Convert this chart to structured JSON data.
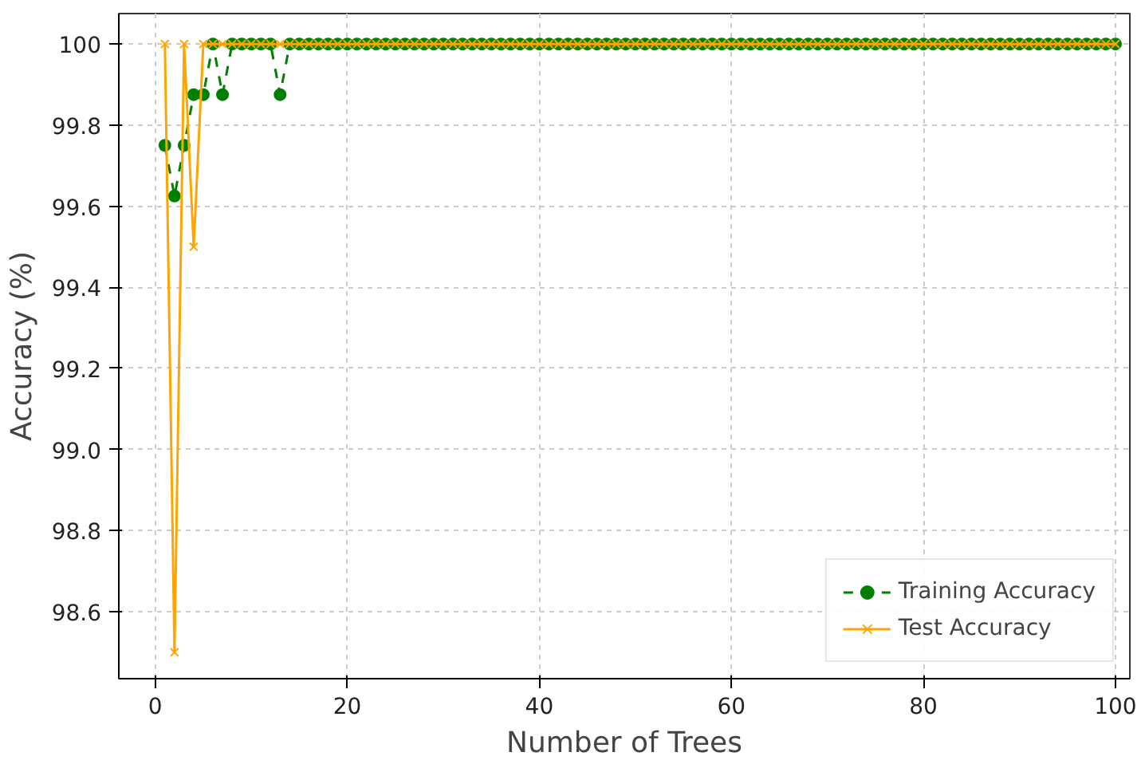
{
  "chart_data": {
    "type": "line",
    "xlabel": "Number of Trees",
    "ylabel": "Accuracy (%)",
    "x": [
      1,
      2,
      3,
      4,
      5,
      6,
      7,
      8,
      9,
      10,
      11,
      12,
      13,
      14,
      15,
      16,
      17,
      18,
      19,
      20,
      21,
      22,
      23,
      24,
      25,
      26,
      27,
      28,
      29,
      30,
      31,
      32,
      33,
      34,
      35,
      36,
      37,
      38,
      39,
      40,
      41,
      42,
      43,
      44,
      45,
      46,
      47,
      48,
      49,
      50,
      51,
      52,
      53,
      54,
      55,
      56,
      57,
      58,
      59,
      60,
      61,
      62,
      63,
      64,
      65,
      66,
      67,
      68,
      69,
      70,
      71,
      72,
      73,
      74,
      75,
      76,
      77,
      78,
      79,
      80,
      81,
      82,
      83,
      84,
      85,
      86,
      87,
      88,
      89,
      90,
      91,
      92,
      93,
      94,
      95,
      96,
      97,
      98,
      99,
      100
    ],
    "series": [
      {
        "name": "Training Accuracy",
        "color": "#008000",
        "marker": "circle",
        "line_style": "dashed",
        "values": [
          99.75,
          99.625,
          99.75,
          99.875,
          99.875,
          100,
          99.875,
          100,
          100,
          100,
          100,
          100,
          99.875,
          100,
          100,
          100,
          100,
          100,
          100,
          100,
          100,
          100,
          100,
          100,
          100,
          100,
          100,
          100,
          100,
          100,
          100,
          100,
          100,
          100,
          100,
          100,
          100,
          100,
          100,
          100,
          100,
          100,
          100,
          100,
          100,
          100,
          100,
          100,
          100,
          100,
          100,
          100,
          100,
          100,
          100,
          100,
          100,
          100,
          100,
          100,
          100,
          100,
          100,
          100,
          100,
          100,
          100,
          100,
          100,
          100,
          100,
          100,
          100,
          100,
          100,
          100,
          100,
          100,
          100,
          100,
          100,
          100,
          100,
          100,
          100,
          100,
          100,
          100,
          100,
          100,
          100,
          100,
          100,
          100,
          100,
          100,
          100,
          100,
          100,
          100
        ]
      },
      {
        "name": "Test Accuracy",
        "color": "#ffa500",
        "marker": "cross",
        "line_style": "solid",
        "values": [
          100,
          98.5,
          100,
          99.5,
          100,
          100,
          100,
          100,
          100,
          100,
          100,
          100,
          100,
          100,
          100,
          100,
          100,
          100,
          100,
          100,
          100,
          100,
          100,
          100,
          100,
          100,
          100,
          100,
          100,
          100,
          100,
          100,
          100,
          100,
          100,
          100,
          100,
          100,
          100,
          100,
          100,
          100,
          100,
          100,
          100,
          100,
          100,
          100,
          100,
          100,
          100,
          100,
          100,
          100,
          100,
          100,
          100,
          100,
          100,
          100,
          100,
          100,
          100,
          100,
          100,
          100,
          100,
          100,
          100,
          100,
          100,
          100,
          100,
          100,
          100,
          100,
          100,
          100,
          100,
          100,
          100,
          100,
          100,
          100,
          100,
          100,
          100,
          100,
          100,
          100,
          100,
          100,
          100,
          100,
          100,
          100,
          100,
          100,
          100,
          100
        ]
      }
    ],
    "xlim": [
      -3.8,
      101.5
    ],
    "ylim": [
      98.435,
      100.075
    ],
    "xticks": [
      0,
      20,
      40,
      60,
      80,
      100
    ],
    "yticks": [
      {
        "value": 98.6,
        "label": "98.6"
      },
      {
        "value": 98.8,
        "label": "98.8"
      },
      {
        "value": 99.0,
        "label": "99.0"
      },
      {
        "value": 99.2,
        "label": "99.2"
      },
      {
        "value": 99.4,
        "label": "99.4"
      },
      {
        "value": 99.6,
        "label": "99.6"
      },
      {
        "value": 99.8,
        "label": "99.8"
      },
      {
        "value": 100,
        "label": "100"
      }
    ],
    "grid": true,
    "legend": "bottom right"
  }
}
